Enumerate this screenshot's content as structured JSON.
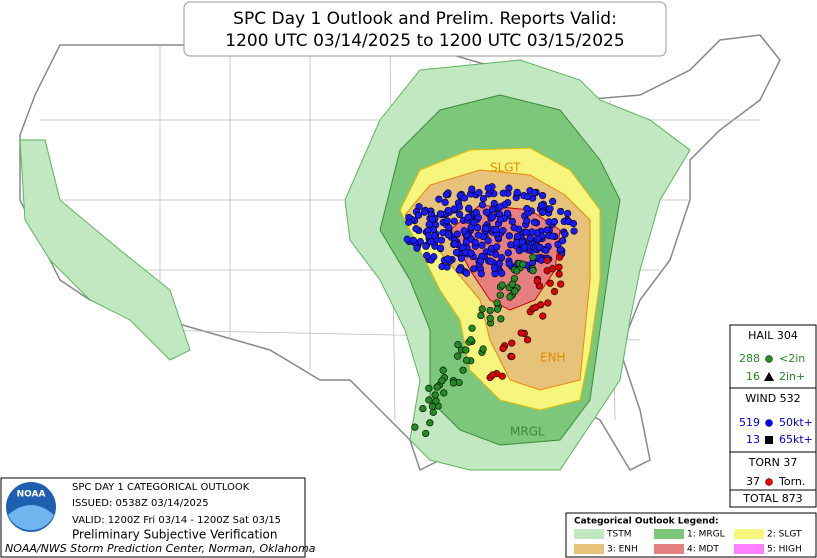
{
  "header": {
    "title_line1": "SPC Day 1 Outlook and Prelim. Reports Valid:",
    "title_line2": "1200 UTC 03/14/2025 to 1200 UTC 03/15/2025"
  },
  "map_labels": {
    "slgt": "SLGT",
    "enh": "ENH",
    "mrgl": "MRGL"
  },
  "stats": {
    "hail": {
      "title": "HAIL 304",
      "row1_count": "288",
      "row1_label": "<2in",
      "row2_count": "16",
      "row2_label": "2in+"
    },
    "wind": {
      "title": "WIND 532",
      "row1_count": "519",
      "row1_label": "50kt+",
      "row2_count": "13",
      "row2_label": "65kt+"
    },
    "torn": {
      "title": "TORN 37",
      "row1_count": "37",
      "row1_label": "Torn."
    },
    "total": "TOTAL 873"
  },
  "info": {
    "logo": "NOAA",
    "line1": "SPC DAY 1 CATEGORICAL OUTLOOK",
    "line2": "ISSUED: 0538Z 03/14/2025",
    "line3": "VALID: 1200Z Fri 03/14 - 1200Z Sat 03/15",
    "line4": "Preliminary Subjective Verification",
    "line5": "NOAA/NWS Storm Prediction Center, Norman, Oklahoma"
  },
  "legend": {
    "title": "Categorical Outlook Legend:",
    "items": [
      "TSTM",
      "1: MRGL",
      "2: SLGT",
      "3: ENH",
      "4: MDT",
      "5: HIGH"
    ]
  }
}
